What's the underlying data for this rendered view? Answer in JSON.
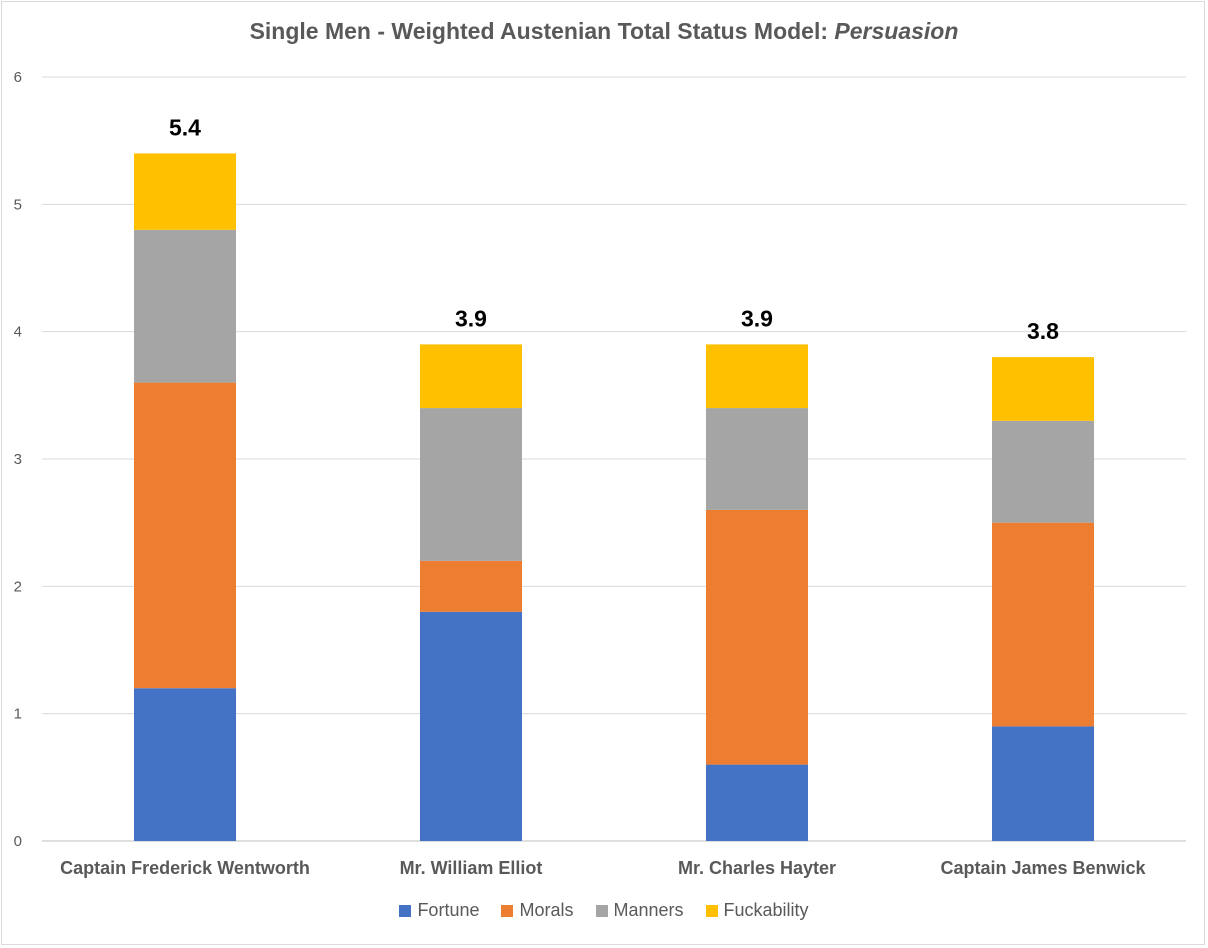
{
  "chart_data": {
    "type": "bar",
    "stacked": true,
    "title": "Single Men - Weighted Austenian Total Status Model: ",
    "title_emphasis": "Persuasion",
    "categories": [
      "Captain Frederick Wentworth",
      "Mr. William Elliot",
      "Mr. Charles Hayter",
      "Captain James Benwick"
    ],
    "series": [
      {
        "name": "Fortune",
        "color": "#4472c4",
        "values": [
          1.2,
          1.8,
          0.6,
          0.9
        ]
      },
      {
        "name": "Morals",
        "color": "#ed7d31",
        "values": [
          2.4,
          0.4,
          2.0,
          1.6
        ]
      },
      {
        "name": "Manners",
        "color": "#a5a5a5",
        "values": [
          1.2,
          1.2,
          0.8,
          0.8
        ]
      },
      {
        "name": "Fuckability",
        "color": "#ffc000",
        "values": [
          0.6,
          0.5,
          0.5,
          0.5
        ]
      }
    ],
    "totals": [
      "5.4",
      "3.9",
      "3.9",
      "3.8"
    ],
    "ylim": [
      0,
      6
    ],
    "yticks": [
      "0",
      "1",
      "2",
      "3",
      "4",
      "5",
      "6"
    ],
    "grid": true,
    "legend_position": "bottom",
    "xlabel": "",
    "ylabel": ""
  }
}
